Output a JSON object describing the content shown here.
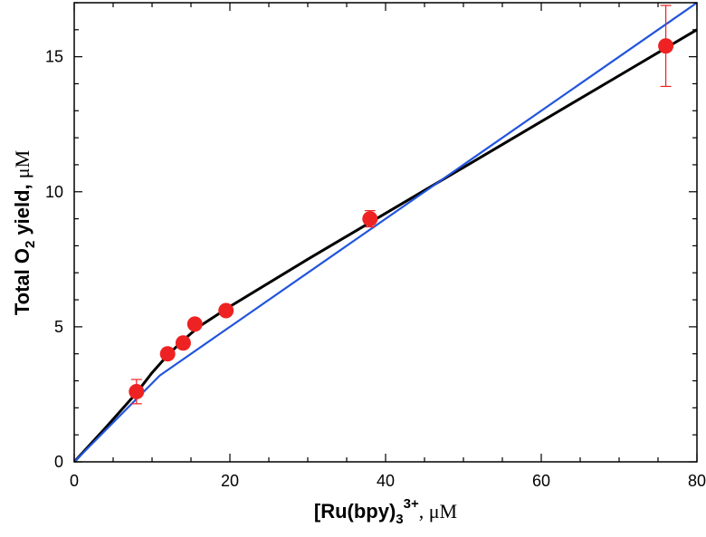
{
  "chart_data": {
    "type": "scatter",
    "xlabel": {
      "main": "[Ru(bpy)",
      "sub": "3",
      "sup": "3+",
      "unit": ", μM"
    },
    "ylabel": {
      "main": "Total O",
      "sub": "2",
      "rest": " yield, ",
      "unit": "μM"
    },
    "xlim": [
      0,
      80
    ],
    "ylim": [
      0,
      17
    ],
    "xticks": [
      "0",
      "20",
      "40",
      "60",
      "80"
    ],
    "xtick_values": [
      0,
      20,
      40,
      60,
      80
    ],
    "yticks": [
      "0",
      "5",
      "10",
      "15"
    ],
    "ytick_values": [
      0,
      5,
      10,
      15
    ],
    "grid": false,
    "legend": "none",
    "series": [
      {
        "kind": "points",
        "color": "#ee2222",
        "points": [
          {
            "x": 8.0,
            "y": 2.6,
            "err": 0.45
          },
          {
            "x": 12.0,
            "y": 4.0,
            "err": 0.15
          },
          {
            "x": 14.0,
            "y": 4.4,
            "err": 0.15
          },
          {
            "x": 15.5,
            "y": 5.1,
            "err": 0.15
          },
          {
            "x": 19.5,
            "y": 5.6,
            "err": 0.18
          },
          {
            "x": 38.0,
            "y": 9.0,
            "err": 0.3
          },
          {
            "x": 76.0,
            "y": 15.4,
            "err": 1.5
          }
        ]
      },
      {
        "kind": "line",
        "color": "#000000",
        "points": [
          {
            "x": 0,
            "y": 0
          },
          {
            "x": 4,
            "y": 1.25
          },
          {
            "x": 8,
            "y": 2.55
          },
          {
            "x": 10,
            "y": 3.3
          },
          {
            "x": 12,
            "y": 3.95
          },
          {
            "x": 14,
            "y": 4.5
          },
          {
            "x": 16,
            "y": 5.0
          },
          {
            "x": 20,
            "y": 5.75
          },
          {
            "x": 30,
            "y": 7.5
          },
          {
            "x": 40,
            "y": 9.2
          },
          {
            "x": 50,
            "y": 10.9
          },
          {
            "x": 60,
            "y": 12.6
          },
          {
            "x": 70,
            "y": 14.3
          },
          {
            "x": 80,
            "y": 16.0
          }
        ]
      },
      {
        "kind": "line",
        "color": "#2255dd",
        "points": [
          {
            "x": 0,
            "y": 0
          },
          {
            "x": 11,
            "y": 3.2
          },
          {
            "x": 80,
            "y": 17.0
          }
        ]
      }
    ]
  }
}
